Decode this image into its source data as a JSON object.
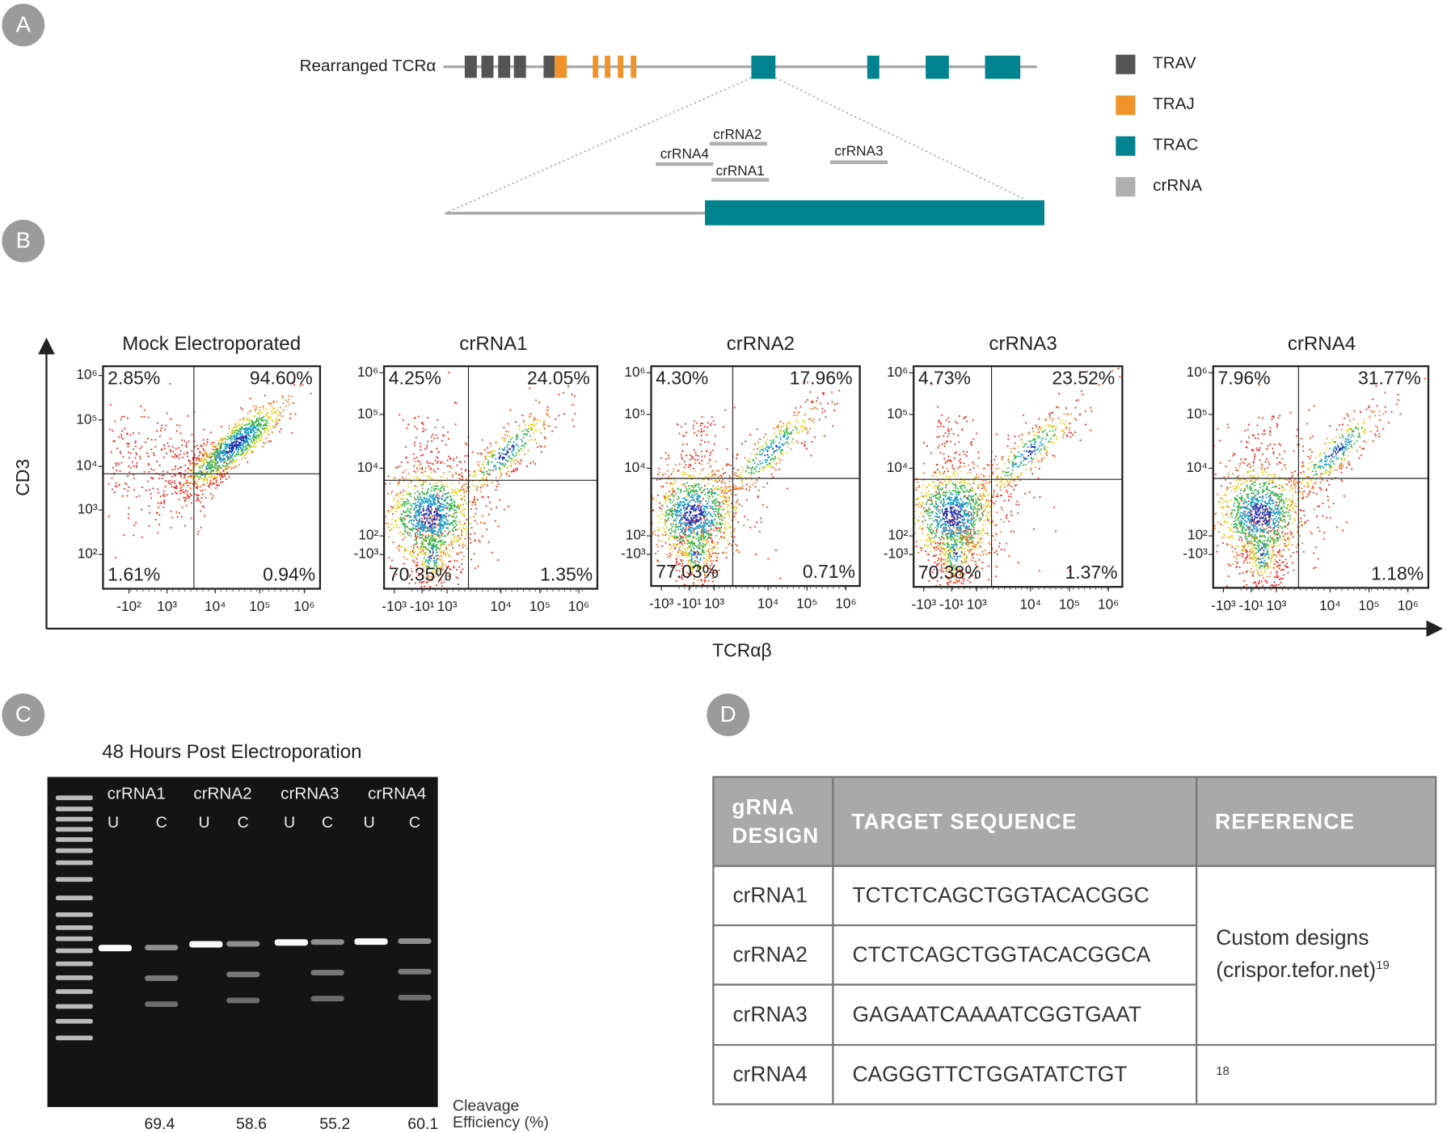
{
  "panels": {
    "a": "A",
    "b": "B",
    "c": "C",
    "d": "D"
  },
  "gene_diagram": {
    "label": "Rearranged TCRα",
    "crrnas": [
      "crRNA2",
      "crRNA4",
      "crRNA1",
      "crRNA3"
    ],
    "legend": [
      {
        "label": "TRAV",
        "color": "#545454"
      },
      {
        "label": "TRAJ",
        "color": "#f0922b"
      },
      {
        "label": "TRAC",
        "color": "#00838f"
      },
      {
        "label": "crRNA",
        "color": "#b0b0b0"
      }
    ]
  },
  "flow": {
    "y_label": "CD3",
    "x_label": "TCRαβ",
    "plots": [
      {
        "title": "Mock Electroporated",
        "quadrants": [
          "2.85%",
          "94.60%",
          "1.61%",
          "0.94%"
        ],
        "yticks": [
          "10⁶",
          "10⁵",
          "10⁴",
          "10³",
          "10²"
        ],
        "xticks": [
          "-10²",
          "10³",
          "10⁴",
          "10⁵",
          "10⁶"
        ]
      },
      {
        "title": "crRNA1",
        "quadrants": [
          "4.25%",
          "24.05%",
          "70.35%",
          "1.35%"
        ],
        "yticks": [
          "10⁶",
          "10⁵",
          "10⁴",
          "10²",
          "-10³"
        ],
        "xticks": [
          "-10³",
          "-10¹",
          "10³",
          "10⁴",
          "10⁵",
          "10⁶"
        ]
      },
      {
        "title": "crRNA2",
        "quadrants": [
          "4.30%",
          "17.96%",
          "77.03%",
          "0.71%"
        ],
        "yticks": [
          "10⁶",
          "10⁵",
          "10⁴",
          "10²",
          "-10³"
        ],
        "xticks": [
          "-10³",
          "-10¹",
          "10³",
          "10⁴",
          "10⁵",
          "10⁶"
        ]
      },
      {
        "title": "crRNA3",
        "quadrants": [
          "4.73%",
          "23.52%",
          "70.38%",
          "1.37%"
        ],
        "yticks": [
          "10⁶",
          "10⁵",
          "10⁴",
          "10²",
          "-10³"
        ],
        "xticks": [
          "-10³",
          "-10¹",
          "10³",
          "10⁴",
          "10⁵",
          "10⁶"
        ]
      },
      {
        "title": "crRNA4",
        "quadrants": [
          "7.96%",
          "31.77%",
          "",
          "1.18%"
        ],
        "yticks": [
          "10⁶",
          "10⁵",
          "10⁴",
          "10²",
          "-10³"
        ],
        "xticks": [
          "-10³",
          "-10¹",
          "10³",
          "10⁴",
          "10⁵",
          "10⁶"
        ]
      }
    ]
  },
  "gel": {
    "title": "48 Hours Post Electroporation",
    "lanes": [
      "crRNA1",
      "crRNA2",
      "crRNA3",
      "crRNA4"
    ],
    "lane_types": [
      "U",
      "C"
    ],
    "efficiencies": [
      "69.4",
      "58.6",
      "55.2",
      "60.1"
    ],
    "efficiency_label": "Cleavage Efficiency (%)"
  },
  "table": {
    "header": [
      "gRNA DESIGN",
      "TARGET SEQUENCE",
      "REFERENCE"
    ],
    "rows": [
      [
        "crRNA1",
        "TCTCTCAGCTGGTACACGGC"
      ],
      [
        "crRNA2",
        "CTCTCAGCTGGTACACGGCA"
      ],
      [
        "crRNA3",
        "GAGAATCAAAATCGGTGAAT"
      ],
      [
        "crRNA4",
        "CAGGGTTCTGGATATCTGT"
      ]
    ],
    "reference": {
      "text": "Custom designs (crispor.tefor.net)",
      "note": "19"
    },
    "reference_last": "18"
  }
}
